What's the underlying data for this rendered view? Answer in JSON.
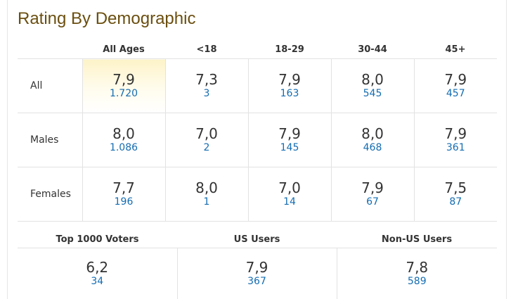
{
  "title": "Rating By Demographic",
  "columns": [
    "All Ages",
    "<18",
    "18-29",
    "30-44",
    "45+"
  ],
  "rows": [
    {
      "label": "All",
      "cells": [
        {
          "rating": "7,9",
          "votes": "1.720"
        },
        {
          "rating": "7,3",
          "votes": "3"
        },
        {
          "rating": "7,9",
          "votes": "163"
        },
        {
          "rating": "8,0",
          "votes": "545"
        },
        {
          "rating": "7,9",
          "votes": "457"
        }
      ]
    },
    {
      "label": "Males",
      "cells": [
        {
          "rating": "8,0",
          "votes": "1.086"
        },
        {
          "rating": "7,0",
          "votes": "2"
        },
        {
          "rating": "7,9",
          "votes": "145"
        },
        {
          "rating": "8,0",
          "votes": "468"
        },
        {
          "rating": "7,9",
          "votes": "361"
        }
      ]
    },
    {
      "label": "Females",
      "cells": [
        {
          "rating": "7,7",
          "votes": "196"
        },
        {
          "rating": "8,0",
          "votes": "1"
        },
        {
          "rating": "7,0",
          "votes": "14"
        },
        {
          "rating": "7,9",
          "votes": "67"
        },
        {
          "rating": "7,5",
          "votes": "87"
        }
      ]
    }
  ],
  "groups": [
    {
      "label": "Top 1000 Voters",
      "rating": "6,2",
      "votes": "34"
    },
    {
      "label": "US Users",
      "rating": "7,9",
      "votes": "367"
    },
    {
      "label": "Non-US Users",
      "rating": "7,8",
      "votes": "589"
    }
  ],
  "colors": {
    "title": "#6b4f10",
    "link": "#136cb2",
    "highlight": "#fdf3c8"
  }
}
